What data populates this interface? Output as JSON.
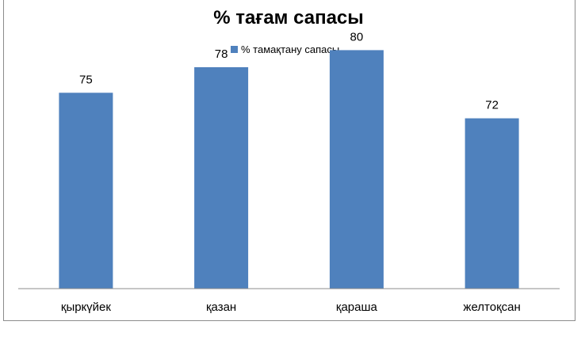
{
  "chart_data": {
    "type": "bar",
    "title": "% тағам сапасы",
    "xlabel": "",
    "ylabel": "",
    "categories": [
      "қыркүйек",
      "қазан",
      "қараша",
      "желтоқсан"
    ],
    "series": [
      {
        "name": "% тамақтану сапасы",
        "values": [
          75,
          78,
          80,
          72
        ],
        "color": "#4f81bd"
      }
    ],
    "data_labels": [
      "75",
      "78",
      "80",
      "72"
    ],
    "ylim": [
      52,
      82
    ],
    "grid": false,
    "legend_position": "top"
  }
}
